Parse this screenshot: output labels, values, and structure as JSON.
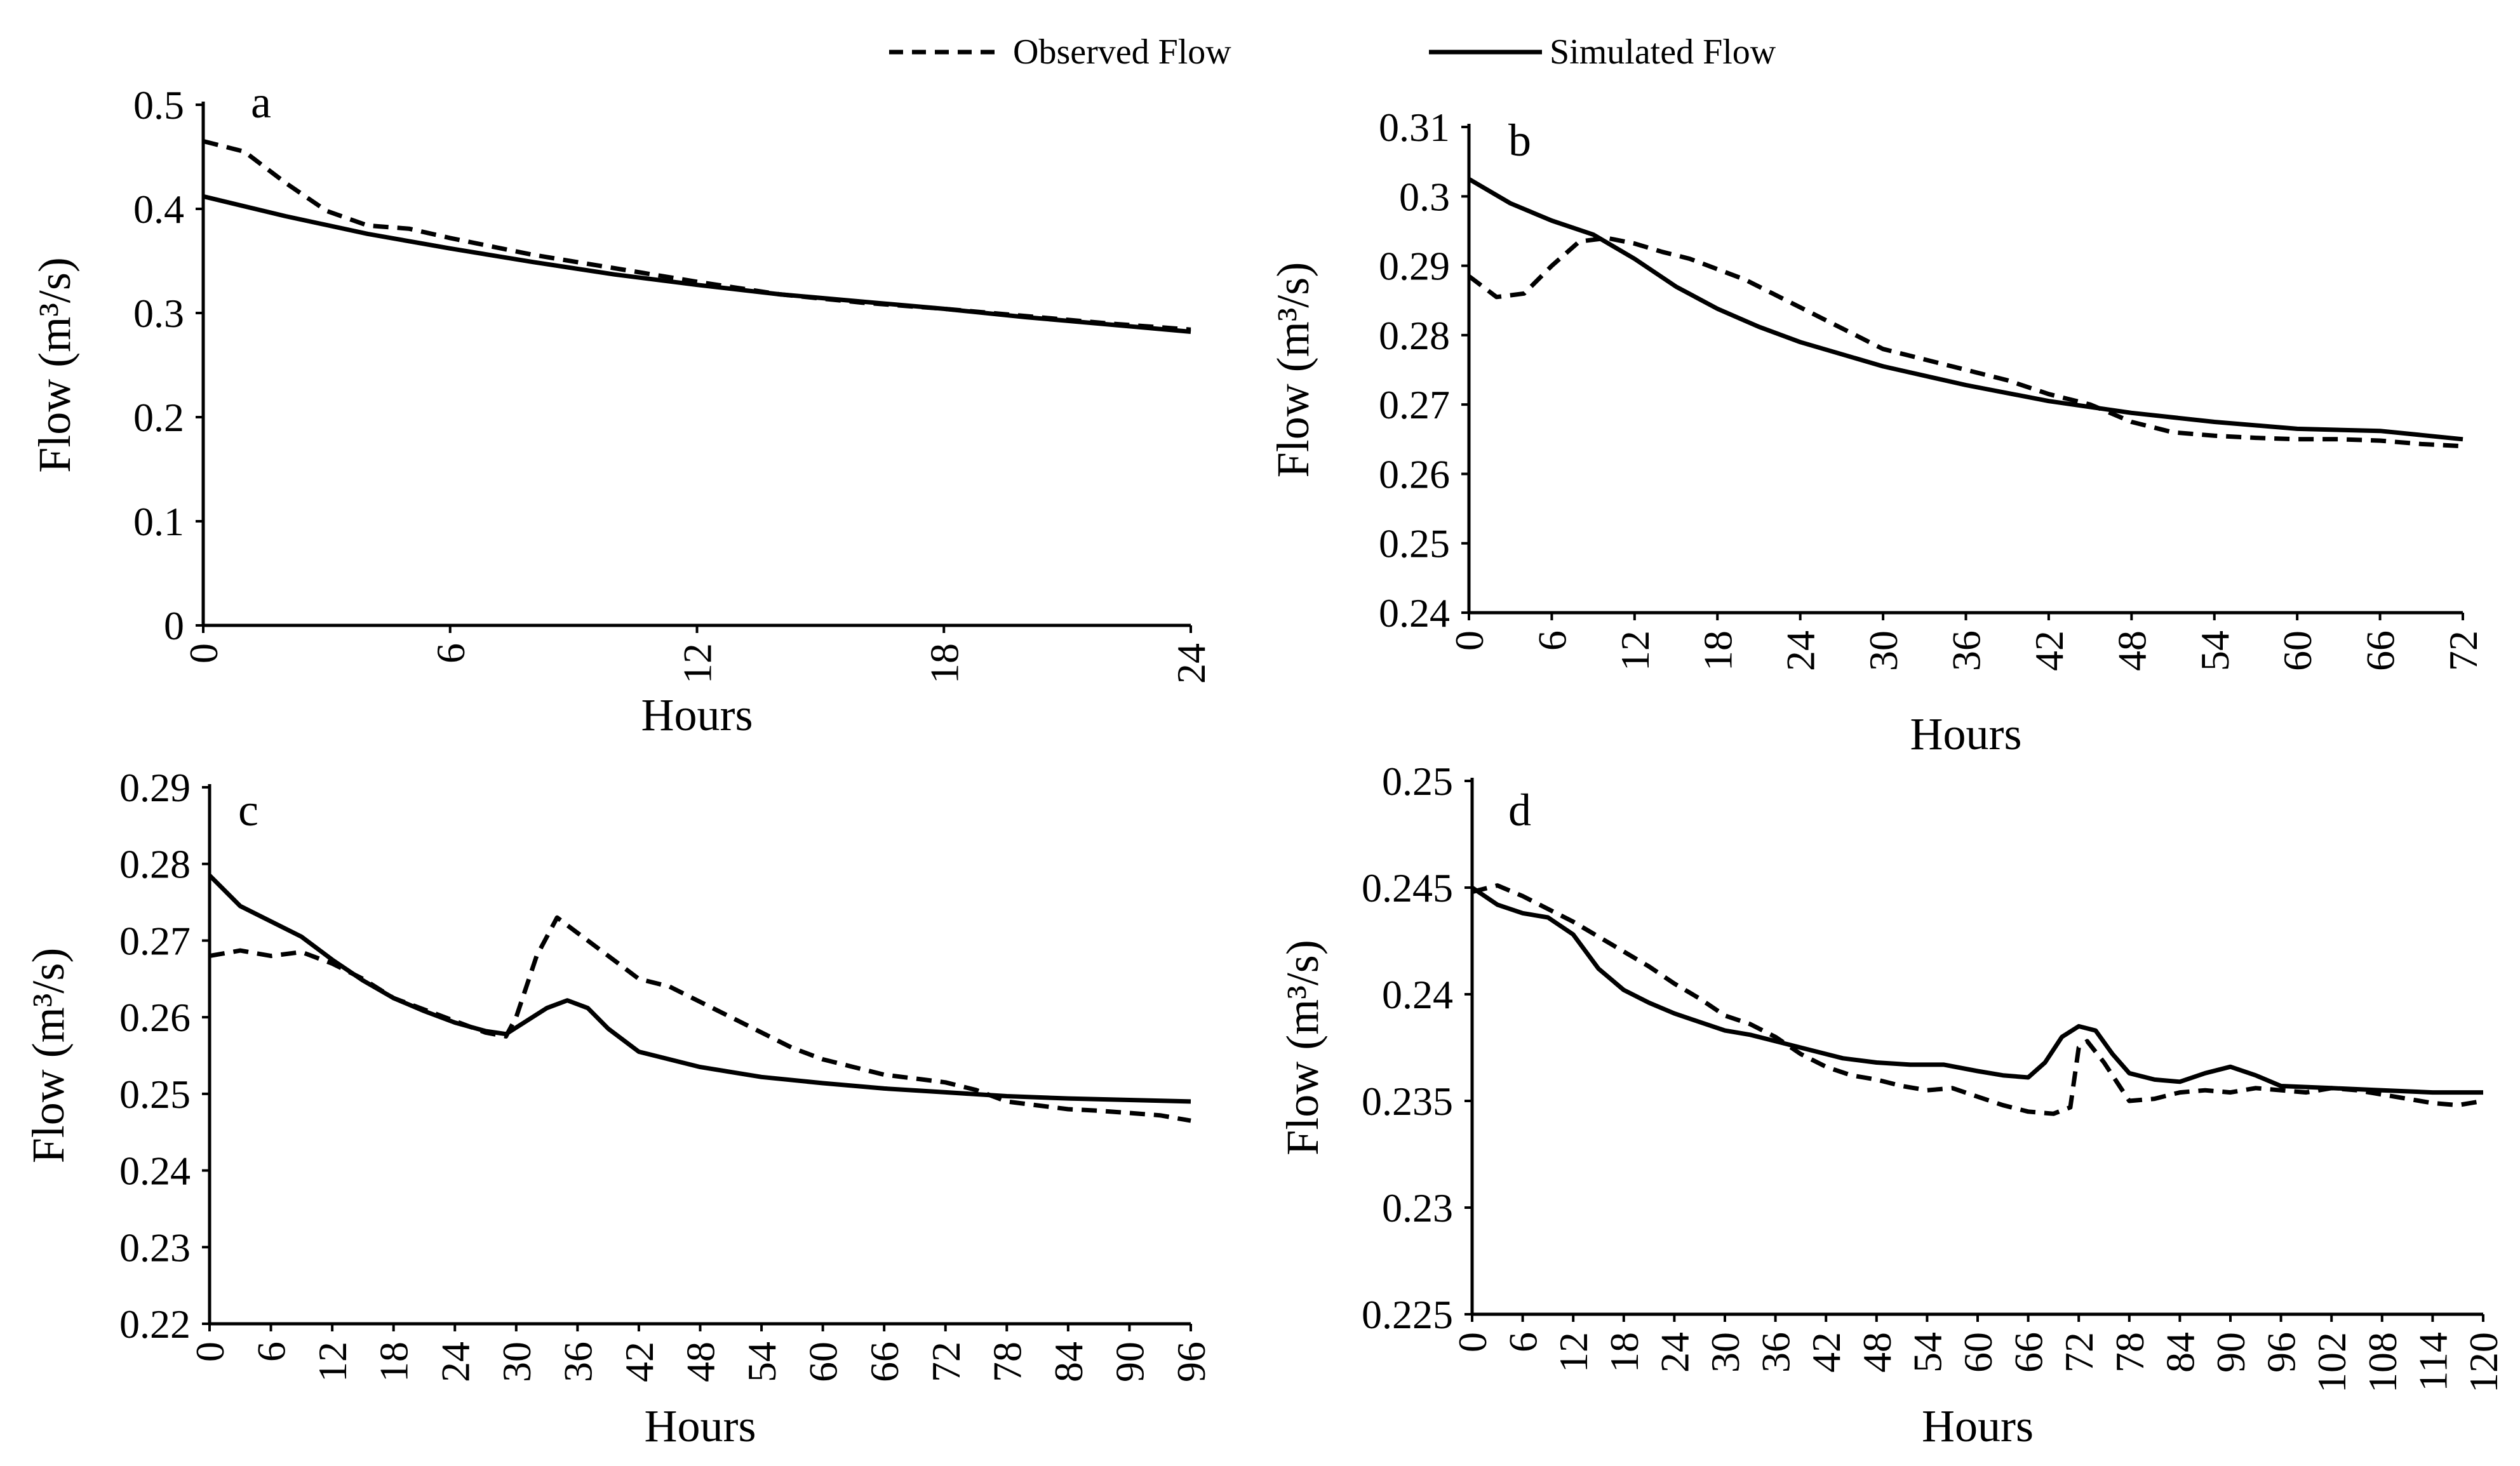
{
  "legend": {
    "observed_label": "Observed Flow",
    "simulated_label": "Simulated Flow"
  },
  "chart_data": [
    {
      "type": "line",
      "panel": "a",
      "xlabel": "Hours",
      "ylabel": "Flow (m³/s)",
      "xlim": [
        0,
        24
      ],
      "ylim": [
        0,
        0.5
      ],
      "xticks": [
        0,
        6,
        12,
        18,
        24
      ],
      "yticks": [
        0,
        0.1,
        0.2,
        0.3,
        0.4,
        0.5
      ],
      "ytick_labels": [
        "0",
        "0.1",
        "0.2",
        "0.3",
        "0.4",
        "0.5"
      ],
      "series": [
        {
          "name": "Observed Flow",
          "style": "dashed",
          "x": [
            0,
            1,
            2,
            3,
            4,
            5,
            6,
            8,
            10,
            12,
            14,
            16,
            18,
            20,
            22,
            24
          ],
          "y": [
            0.465,
            0.455,
            0.425,
            0.398,
            0.384,
            0.381,
            0.372,
            0.356,
            0.343,
            0.33,
            0.318,
            0.31,
            0.304,
            0.297,
            0.29,
            0.284
          ]
        },
        {
          "name": "Simulated Flow",
          "style": "solid",
          "x": [
            0,
            2,
            4,
            6,
            8,
            10,
            12,
            14,
            16,
            18,
            20,
            22,
            24
          ],
          "y": [
            0.412,
            0.393,
            0.376,
            0.362,
            0.349,
            0.337,
            0.327,
            0.318,
            0.311,
            0.304,
            0.296,
            0.289,
            0.282
          ]
        }
      ]
    },
    {
      "type": "line",
      "panel": "b",
      "xlabel": "Hours",
      "ylabel": "Flow (m³/s)",
      "xlim": [
        0,
        72
      ],
      "ylim": [
        0.24,
        0.31
      ],
      "xticks": [
        0,
        6,
        12,
        18,
        24,
        30,
        36,
        42,
        48,
        54,
        60,
        66,
        72
      ],
      "yticks": [
        0.24,
        0.25,
        0.26,
        0.27,
        0.28,
        0.29,
        0.3,
        0.31
      ],
      "ytick_labels": [
        "0.24",
        "0.25",
        "0.26",
        "0.27",
        "0.28",
        "0.29",
        "0.3",
        "0.31"
      ],
      "series": [
        {
          "name": "Observed Flow",
          "style": "dashed",
          "x": [
            0,
            2,
            4,
            6,
            8,
            10,
            12,
            14,
            16,
            18,
            20,
            22,
            24,
            27,
            30,
            33,
            36,
            39,
            42,
            45,
            48,
            51,
            54,
            57,
            60,
            63,
            66,
            69,
            72
          ],
          "y": [
            0.2885,
            0.2855,
            0.286,
            0.29,
            0.2935,
            0.294,
            0.2932,
            0.292,
            0.291,
            0.2895,
            0.288,
            0.286,
            0.284,
            0.281,
            0.278,
            0.2765,
            0.275,
            0.2735,
            0.2715,
            0.27,
            0.2675,
            0.266,
            0.2655,
            0.2652,
            0.265,
            0.265,
            0.2648,
            0.2643,
            0.264
          ]
        },
        {
          "name": "Simulated Flow",
          "style": "solid",
          "x": [
            0,
            3,
            6,
            9,
            12,
            15,
            18,
            21,
            24,
            30,
            36,
            42,
            48,
            54,
            60,
            66,
            72
          ],
          "y": [
            0.3025,
            0.299,
            0.2965,
            0.2945,
            0.291,
            0.287,
            0.2838,
            0.2812,
            0.279,
            0.2755,
            0.2728,
            0.2705,
            0.2688,
            0.2675,
            0.2665,
            0.2662,
            0.265
          ]
        }
      ]
    },
    {
      "type": "line",
      "panel": "c",
      "xlabel": "Hours",
      "ylabel": "Flow (m³/s)",
      "xlim": [
        0,
        96
      ],
      "ylim": [
        0.22,
        0.29
      ],
      "xticks": [
        0,
        6,
        12,
        18,
        24,
        30,
        36,
        42,
        48,
        54,
        60,
        66,
        72,
        78,
        84,
        90,
        96
      ],
      "yticks": [
        0.22,
        0.23,
        0.24,
        0.25,
        0.26,
        0.27,
        0.28,
        0.29
      ],
      "ytick_labels": [
        "0.22",
        "0.23",
        "0.24",
        "0.25",
        "0.26",
        "0.27",
        "0.28",
        "0.29"
      ],
      "series": [
        {
          "name": "Observed Flow",
          "style": "dashed",
          "x": [
            0,
            3,
            6,
            9,
            12,
            15,
            18,
            21,
            24,
            27,
            29,
            30,
            32,
            34,
            36,
            38,
            40,
            42,
            45,
            48,
            51,
            54,
            57,
            60,
            63,
            66,
            69,
            72,
            75,
            78,
            81,
            84,
            87,
            90,
            93,
            96
          ],
          "y": [
            0.268,
            0.2687,
            0.268,
            0.2685,
            0.267,
            0.265,
            0.2625,
            0.261,
            0.2595,
            0.258,
            0.2575,
            0.26,
            0.268,
            0.273,
            0.271,
            0.269,
            0.267,
            0.265,
            0.264,
            0.262,
            0.26,
            0.258,
            0.256,
            0.2545,
            0.2535,
            0.2525,
            0.252,
            0.2515,
            0.2505,
            0.249,
            0.2485,
            0.248,
            0.2478,
            0.2475,
            0.2472,
            0.2465
          ]
        },
        {
          "name": "Simulated Flow",
          "style": "solid",
          "x": [
            0,
            3,
            6,
            9,
            12,
            15,
            18,
            21,
            24,
            27,
            29,
            31,
            33,
            35,
            37,
            39,
            42,
            48,
            54,
            60,
            66,
            72,
            78,
            84,
            90,
            96
          ],
          "y": [
            0.2785,
            0.2745,
            0.2725,
            0.2705,
            0.2675,
            0.2648,
            0.2625,
            0.2608,
            0.2593,
            0.2582,
            0.2578,
            0.2595,
            0.2612,
            0.2622,
            0.2612,
            0.2585,
            0.2555,
            0.2535,
            0.2522,
            0.2514,
            0.2507,
            0.2502,
            0.2497,
            0.2494,
            0.2492,
            0.249
          ]
        }
      ]
    },
    {
      "type": "line",
      "panel": "d",
      "xlabel": "Hours",
      "ylabel": "Flow (m³/s)",
      "xlim": [
        0,
        120
      ],
      "ylim": [
        0.225,
        0.25
      ],
      "xticks": [
        0,
        6,
        12,
        18,
        24,
        30,
        36,
        42,
        48,
        54,
        60,
        66,
        72,
        78,
        84,
        90,
        96,
        102,
        108,
        114,
        120
      ],
      "yticks": [
        0.225,
        0.23,
        0.235,
        0.24,
        0.245,
        0.25
      ],
      "ytick_labels": [
        "0.225",
        "0.23",
        "0.235",
        "0.24",
        "0.245",
        "0.25"
      ],
      "series": [
        {
          "name": "Observed Flow",
          "style": "dashed",
          "x": [
            0,
            3,
            6,
            9,
            12,
            15,
            18,
            21,
            24,
            27,
            30,
            33,
            36,
            39,
            42,
            45,
            48,
            51,
            54,
            57,
            60,
            63,
            66,
            69,
            71,
            72,
            73,
            75,
            78,
            81,
            84,
            87,
            90,
            93,
            96,
            99,
            102,
            105,
            108,
            111,
            114,
            117,
            120
          ],
          "y": [
            0.2448,
            0.2451,
            0.2446,
            0.244,
            0.2434,
            0.2427,
            0.242,
            0.2413,
            0.2405,
            0.2398,
            0.239,
            0.2386,
            0.238,
            0.2372,
            0.2366,
            0.2362,
            0.236,
            0.2357,
            0.2355,
            0.2356,
            0.2352,
            0.2348,
            0.2345,
            0.2344,
            0.2347,
            0.2375,
            0.2378,
            0.2368,
            0.235,
            0.2351,
            0.2354,
            0.2355,
            0.2354,
            0.2356,
            0.2355,
            0.2354,
            0.2356,
            0.2355,
            0.2353,
            0.2351,
            0.2349,
            0.2348,
            0.235
          ]
        },
        {
          "name": "Simulated Flow",
          "style": "solid",
          "x": [
            0,
            3,
            6,
            9,
            12,
            15,
            18,
            21,
            24,
            27,
            30,
            33,
            36,
            40,
            44,
            48,
            52,
            56,
            60,
            63,
            66,
            68,
            70,
            72,
            74,
            76,
            78,
            81,
            84,
            87,
            90,
            93,
            96,
            102,
            108,
            114,
            120
          ],
          "y": [
            0.245,
            0.2442,
            0.2438,
            0.2436,
            0.2428,
            0.2412,
            0.2402,
            0.2396,
            0.2391,
            0.2387,
            0.2383,
            0.2381,
            0.2378,
            0.2374,
            0.237,
            0.2368,
            0.2367,
            0.2367,
            0.2364,
            0.2362,
            0.2361,
            0.2368,
            0.238,
            0.2385,
            0.2383,
            0.2372,
            0.2363,
            0.236,
            0.2359,
            0.2363,
            0.2366,
            0.2362,
            0.2357,
            0.2356,
            0.2355,
            0.2354,
            0.2354
          ]
        }
      ]
    }
  ]
}
